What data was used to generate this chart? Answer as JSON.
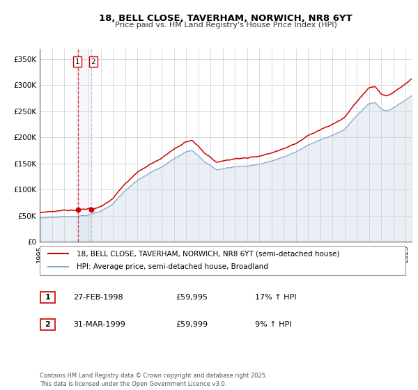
{
  "title": "18, BELL CLOSE, TAVERHAM, NORWICH, NR8 6YT",
  "subtitle": "Price paid vs. HM Land Registry's House Price Index (HPI)",
  "legend_line1": "18, BELL CLOSE, TAVERHAM, NORWICH, NR8 6YT (semi-detached house)",
  "legend_line2": "HPI: Average price, semi-detached house, Broadland",
  "transaction1_label": "1",
  "transaction1_date": "27-FEB-1998",
  "transaction1_price": "£59,995",
  "transaction1_hpi": "17% ↑ HPI",
  "transaction2_label": "2",
  "transaction2_date": "31-MAR-1999",
  "transaction2_price": "£59,999",
  "transaction2_hpi": "9% ↑ HPI",
  "footer": "Contains HM Land Registry data © Crown copyright and database right 2025.\nThis data is licensed under the Open Government Licence v3.0.",
  "line_color_property": "#cc0000",
  "line_color_hpi": "#88aacc",
  "vline_color1": "#cc0000",
  "vline_color2": "#aaaacc",
  "marker_color": "#cc0000",
  "background_color": "#ffffff",
  "grid_color": "#cccccc",
  "ylim": [
    0,
    370000
  ],
  "yticks": [
    0,
    50000,
    100000,
    150000,
    200000,
    250000,
    300000,
    350000
  ],
  "transaction1_x": 1998.15,
  "transaction2_x": 1999.25,
  "hpi_keypoints_x": [
    1995.0,
    1996.0,
    1997.0,
    1998.0,
    1999.0,
    2000.0,
    2001.0,
    2002.0,
    2003.0,
    2004.0,
    2005.0,
    2006.0,
    2007.0,
    2007.5,
    2008.0,
    2008.5,
    2009.0,
    2009.5,
    2010.0,
    2011.0,
    2012.0,
    2013.0,
    2014.0,
    2015.0,
    2016.0,
    2017.0,
    2018.0,
    2019.0,
    2020.0,
    2021.0,
    2022.0,
    2022.5,
    2023.0,
    2023.5,
    2024.0,
    2024.5,
    2025.5
  ],
  "hpi_keypoints_y": [
    46000,
    47500,
    49000,
    50500,
    53000,
    60000,
    75000,
    100000,
    118000,
    132000,
    143000,
    158000,
    174000,
    178000,
    168000,
    155000,
    148000,
    140000,
    142000,
    146000,
    148000,
    152000,
    158000,
    165000,
    175000,
    188000,
    197000,
    208000,
    218000,
    245000,
    268000,
    270000,
    258000,
    255000,
    262000,
    268000,
    285000
  ],
  "hpi_noise_seed": 7,
  "prop_noise_seed": 13,
  "hpi_noise_scale": 300,
  "prop_noise_scale": 200
}
